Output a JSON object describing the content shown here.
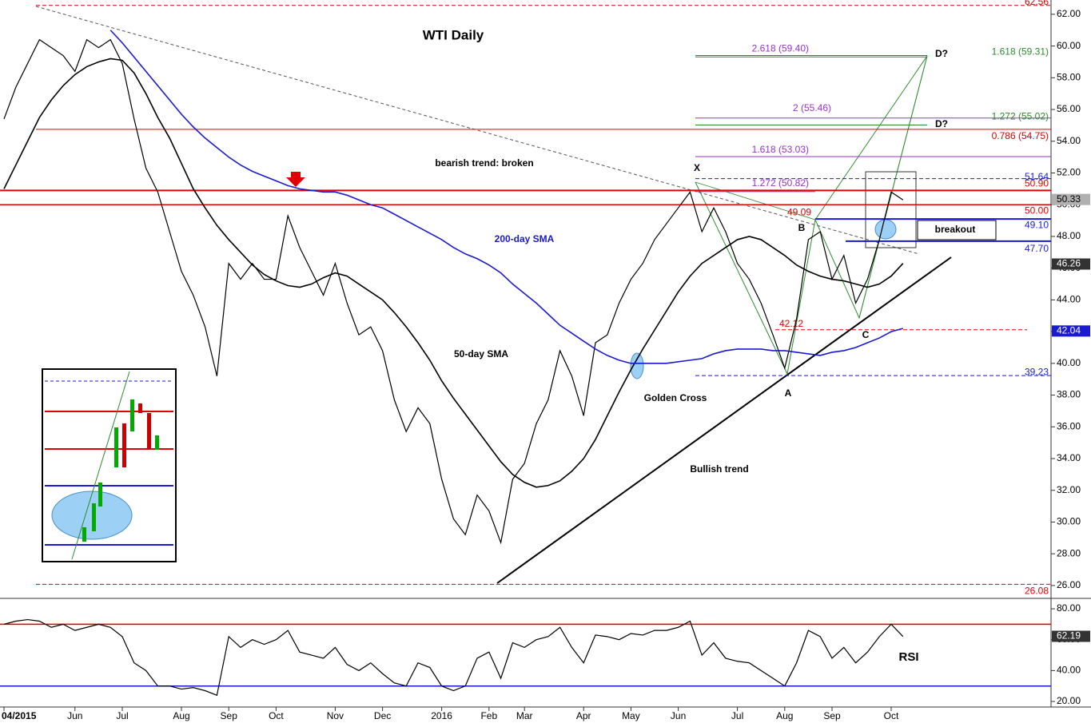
{
  "chart_data": {
    "type": "line",
    "title": "WTI Daily",
    "categories": [
      "04/2015",
      null,
      null,
      null,
      null,
      null,
      "Jun",
      null,
      null,
      null,
      "Jul",
      null,
      null,
      null,
      null,
      "Aug",
      null,
      null,
      null,
      "Sep",
      null,
      null,
      null,
      "Oct",
      null,
      null,
      null,
      null,
      "Nov",
      null,
      null,
      null,
      "Dec",
      null,
      null,
      null,
      null,
      "2016",
      null,
      null,
      null,
      "Feb",
      null,
      null,
      "Mar",
      null,
      null,
      null,
      null,
      "Apr",
      null,
      null,
      null,
      "May",
      null,
      null,
      null,
      "Jun",
      null,
      null,
      null,
      null,
      "Jul",
      null,
      null,
      null,
      "Aug",
      null,
      null,
      null,
      "Sep",
      null,
      null,
      null,
      null,
      "Oct",
      null
    ],
    "series": [
      {
        "name": "WTI",
        "color": "#000000",
        "values": [
          55.4,
          57.4,
          58.9,
          60.4,
          59.9,
          59.4,
          58.4,
          60.4,
          59.9,
          60.4,
          58.9,
          55.4,
          52.3,
          50.8,
          48.3,
          45.8,
          44.3,
          42.3,
          39.2,
          46.3,
          45.3,
          46.3,
          45.3,
          45.3,
          49.3,
          47.3,
          45.8,
          44.3,
          46.3,
          43.8,
          41.8,
          42.3,
          40.8,
          37.7,
          35.7,
          37.2,
          36.2,
          32.7,
          30.2,
          29.2,
          31.7,
          30.7,
          28.7,
          32.7,
          33.7,
          36.2,
          37.7,
          40.8,
          39.2,
          36.7,
          41.3,
          41.8,
          43.8,
          45.3,
          46.3,
          47.8,
          48.8,
          49.8,
          50.8,
          48.3,
          49.8,
          48.3,
          46.3,
          45.3,
          43.8,
          41.8,
          39.7,
          42.8,
          47.8,
          48.3,
          45.3,
          46.8,
          43.8,
          45.3,
          47.8,
          50.8,
          50.3
        ]
      },
      {
        "name": "50-day SMA",
        "color": "#000000",
        "values": [
          51.0,
          52.5,
          54.0,
          55.5,
          56.6,
          57.5,
          58.2,
          58.7,
          59.0,
          59.2,
          59.1,
          58.3,
          57.0,
          55.5,
          54.2,
          52.6,
          51.0,
          49.8,
          48.7,
          47.8,
          47.0,
          46.2,
          45.6,
          45.2,
          44.9,
          44.8,
          45.0,
          45.4,
          45.7,
          45.5,
          45.0,
          44.5,
          44.0,
          43.2,
          42.3,
          41.3,
          40.2,
          38.9,
          37.8,
          36.8,
          35.8,
          34.8,
          33.8,
          33.0,
          32.5,
          32.2,
          32.3,
          32.6,
          33.2,
          34.0,
          35.2,
          36.7,
          38.2,
          39.6,
          40.9,
          42.1,
          43.3,
          44.5,
          45.5,
          46.3,
          46.8,
          47.3,
          47.8,
          48.0,
          47.8,
          47.3,
          46.8,
          46.2,
          45.8,
          45.5,
          45.3,
          45.2,
          45.0,
          44.8,
          45.0,
          45.5,
          46.3
        ]
      },
      {
        "name": "200-day SMA",
        "color": "#1a1ad0",
        "values": [
          null,
          null,
          null,
          null,
          null,
          null,
          null,
          null,
          null,
          61.0,
          60.2,
          59.3,
          58.4,
          57.5,
          56.6,
          55.7,
          54.9,
          54.2,
          53.6,
          53.0,
          52.5,
          52.1,
          51.8,
          51.5,
          51.2,
          51.0,
          50.9,
          50.8,
          50.8,
          50.6,
          50.3,
          50.0,
          49.8,
          49.4,
          49.0,
          48.6,
          48.2,
          47.8,
          47.3,
          46.9,
          46.6,
          46.2,
          45.7,
          45.0,
          44.4,
          43.8,
          43.1,
          42.4,
          41.9,
          41.4,
          40.9,
          40.5,
          40.2,
          40.0,
          40.0,
          40.0,
          40.0,
          40.1,
          40.2,
          40.3,
          40.6,
          40.8,
          40.9,
          40.9,
          40.9,
          40.8,
          40.8,
          40.7,
          40.6,
          40.5,
          40.7,
          40.8,
          41.0,
          41.3,
          41.6,
          42.0,
          42.2
        ]
      }
    ],
    "ylim": [
      25.24,
      62.9
    ],
    "yticks": [
      {
        "value": 26,
        "label": "26.00"
      },
      {
        "value": 28,
        "label": "28.00"
      },
      {
        "value": 30,
        "label": "30.00"
      },
      {
        "value": 32,
        "label": "32.00"
      },
      {
        "value": 34,
        "label": "34.00"
      },
      {
        "value": 36,
        "label": "36.00"
      },
      {
        "value": 38,
        "label": "38.00"
      },
      {
        "value": 40,
        "label": "40.00"
      },
      {
        "value": 42,
        "label": "42.00"
      },
      {
        "value": 44,
        "label": "44.00"
      },
      {
        "value": 46,
        "label": "46.00"
      },
      {
        "value": 48,
        "label": "48.00"
      },
      {
        "value": 50,
        "label": "50.00"
      },
      {
        "value": 52,
        "label": "52.00"
      },
      {
        "value": 54,
        "label": "54.00"
      },
      {
        "value": 56,
        "label": "56.00"
      },
      {
        "value": 58,
        "label": "58.00"
      },
      {
        "value": 60,
        "label": "60.00"
      },
      {
        "value": 62,
        "label": "62.00"
      }
    ],
    "price_markers": [
      {
        "value": 50.33,
        "color": "#b0b0b0"
      },
      {
        "value": 46.26,
        "color": "#333333"
      },
      {
        "value": 42.04,
        "color": "#1a1ad0"
      }
    ],
    "levels": [
      {
        "value": 62.56,
        "label": "62.56",
        "color": "#e00000"
      },
      {
        "value": 26.08,
        "label": "26.08",
        "color": "#e00000"
      },
      {
        "value": 51.64,
        "label": "51.64",
        "color": "#1a1ad0"
      },
      {
        "value": 50.9,
        "label": "50.90",
        "color": "#e00000"
      },
      {
        "value": 50.0,
        "label": "50.00",
        "color": "#e00000"
      },
      {
        "value": 49.1,
        "label": "49.10",
        "color": "#1a1ad0"
      },
      {
        "value": 47.7,
        "label": "47.70",
        "color": "#1a1ad0"
      },
      {
        "value": 39.23,
        "label": "39.23",
        "color": "#1a1ad0"
      },
      {
        "value": 42.12,
        "label": "42.12",
        "color": "#e00000"
      },
      {
        "value": 59.4,
        "label": "2.618 (59.40)",
        "color": "#9932cc"
      },
      {
        "value": 59.31,
        "label": "1.618 (59.31)",
        "color": "#2e8b2e"
      },
      {
        "value": 55.46,
        "label": "2 (55.46)",
        "color": "#9932cc"
      },
      {
        "value": 55.02,
        "label": "1.272 (55.02)",
        "color": "#2e8b2e"
      },
      {
        "value": 54.75,
        "label": "0.786 (54.75)",
        "color": "#e00000"
      },
      {
        "value": 53.03,
        "label": "1.618 (53.03)",
        "color": "#9932cc"
      },
      {
        "value": 50.82,
        "label": "1.272 (50.82)",
        "color": "#9932cc"
      },
      {
        "value": 49.09,
        "label": "49.09",
        "color": "#e00000"
      }
    ],
    "annotations": [
      "bearish trend: broken",
      "200-day SMA",
      "50-day SMA",
      "Golden Cross",
      "Bullish trend",
      "X",
      "A",
      "B",
      "C",
      "D?",
      "D?",
      "breakout"
    ],
    "rsi": {
      "label": "RSI",
      "color": "#000000",
      "values": [
        70,
        72,
        73,
        72,
        68,
        70,
        66,
        68,
        70,
        68,
        62,
        45,
        40,
        30,
        30,
        28,
        29,
        27,
        24,
        62,
        55,
        60,
        57,
        60,
        66,
        52,
        50,
        48,
        55,
        44,
        40,
        45,
        38,
        32,
        30,
        45,
        42,
        30,
        27,
        30,
        48,
        52,
        35,
        58,
        55,
        60,
        62,
        68,
        55,
        45,
        63,
        62,
        60,
        64,
        63,
        66,
        66,
        68,
        72,
        50,
        58,
        48,
        46,
        45,
        40,
        35,
        30,
        45,
        66,
        62,
        48,
        55,
        45,
        52,
        62,
        70,
        62
      ],
      "ylim": [
        16.4,
        85.2
      ],
      "yticks": [
        {
          "value": 20,
          "label": "20.00"
        },
        {
          "value": 40,
          "label": "40.00"
        },
        {
          "value": 60,
          "label": "60.00"
        },
        {
          "value": 80,
          "label": "80.00"
        }
      ],
      "levels": [
        {
          "value": 70,
          "color": "#e00000"
        },
        {
          "value": 30,
          "color": "#1a1ad0"
        }
      ],
      "marker": 62.19
    }
  }
}
